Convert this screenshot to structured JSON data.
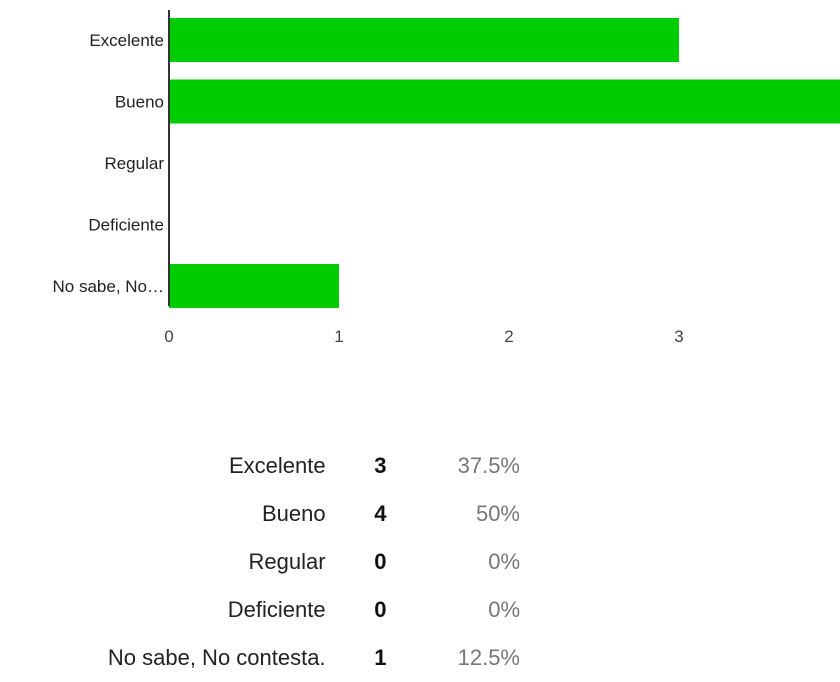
{
  "chart_data": {
    "type": "bar",
    "orientation": "horizontal",
    "categories": [
      "Excelente",
      "Bueno",
      "Regular",
      "Deficiente",
      "No sabe, No…"
    ],
    "values": [
      3,
      4,
      0,
      0,
      1
    ],
    "x_ticks": [
      "0",
      "1",
      "2",
      "3"
    ],
    "xlim": [
      0,
      4
    ],
    "grid": false,
    "bar_color": "#00cc00"
  },
  "summary": {
    "rows": [
      {
        "label": "Excelente",
        "count": "3",
        "percent": "37.5%"
      },
      {
        "label": "Bueno",
        "count": "4",
        "percent": "50%"
      },
      {
        "label": "Regular",
        "count": "0",
        "percent": "0%"
      },
      {
        "label": "Deficiente",
        "count": "0",
        "percent": "0%"
      },
      {
        "label": "No sabe, No contesta.",
        "count": "1",
        "percent": "12.5%"
      }
    ]
  }
}
